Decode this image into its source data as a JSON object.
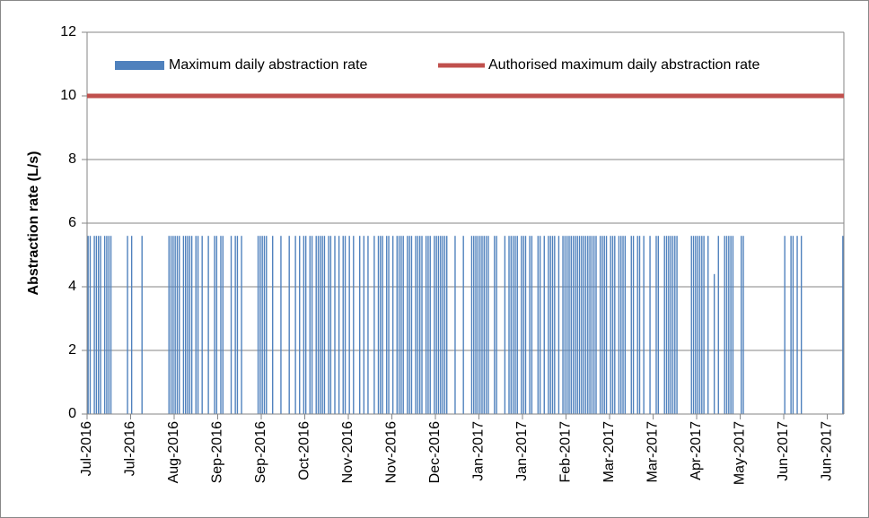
{
  "chart_data": {
    "type": "bar",
    "y_label": "Abstraction rate (L/s)",
    "ylim": [
      0,
      12
    ],
    "yticks": [
      0,
      2,
      4,
      6,
      8,
      10,
      12
    ],
    "grid": true,
    "categories": [
      "Jul-2016",
      null,
      null,
      null,
      null,
      null,
      null,
      null,
      null,
      null,
      null,
      null,
      null,
      null,
      null,
      null,
      null,
      null,
      null,
      null,
      null,
      "Jul-2016",
      null,
      null,
      null,
      null,
      null,
      null,
      null,
      null,
      null,
      null,
      null,
      null,
      null,
      null,
      null,
      null,
      null,
      null,
      null,
      null,
      "Aug-2016",
      null,
      null,
      null,
      null,
      null,
      null,
      null,
      null,
      null,
      null,
      null,
      null,
      null,
      null,
      null,
      null,
      null,
      null,
      null,
      null,
      "Sep-2016",
      null,
      null,
      null,
      null,
      null,
      null,
      null,
      null,
      null,
      null,
      null,
      null,
      null,
      null,
      null,
      null,
      null,
      null,
      null,
      null,
      "Sep-2016",
      null,
      null,
      null,
      null,
      null,
      null,
      null,
      null,
      null,
      null,
      null,
      null,
      null,
      null,
      null,
      null,
      null,
      null,
      null,
      null,
      "Oct-2016",
      null,
      null,
      null,
      null,
      null,
      null,
      null,
      null,
      null,
      null,
      null,
      null,
      null,
      null,
      null,
      null,
      null,
      null,
      null,
      null,
      "Nov-2016",
      null,
      null,
      null,
      null,
      null,
      null,
      null,
      null,
      null,
      null,
      null,
      null,
      null,
      null,
      null,
      null,
      null,
      null,
      null,
      null,
      "Nov-2016",
      null,
      null,
      null,
      null,
      null,
      null,
      null,
      null,
      null,
      null,
      null,
      null,
      null,
      null,
      null,
      null,
      null,
      null,
      null,
      null,
      "Dec-2016",
      null,
      null,
      null,
      null,
      null,
      null,
      null,
      null,
      null,
      null,
      null,
      null,
      null,
      null,
      null,
      null,
      null,
      null,
      null,
      null,
      "Jan-2017",
      null,
      null,
      null,
      null,
      null,
      null,
      null,
      null,
      null,
      null,
      null,
      null,
      null,
      null,
      null,
      null,
      null,
      null,
      null,
      null,
      "Jan-2017",
      null,
      null,
      null,
      null,
      null,
      null,
      null,
      null,
      null,
      null,
      null,
      null,
      null,
      null,
      null,
      null,
      null,
      null,
      null,
      null,
      "Feb-2017",
      null,
      null,
      null,
      null,
      null,
      null,
      null,
      null,
      null,
      null,
      null,
      null,
      null,
      null,
      null,
      null,
      null,
      null,
      null,
      null,
      "Mar-2017",
      null,
      null,
      null,
      null,
      null,
      null,
      null,
      null,
      null,
      null,
      null,
      null,
      null,
      null,
      null,
      null,
      null,
      null,
      null,
      null,
      "Mar-2017",
      null,
      null,
      null,
      null,
      null,
      null,
      null,
      null,
      null,
      null,
      null,
      null,
      null,
      null,
      null,
      null,
      null,
      null,
      null,
      null,
      "Apr-2017",
      null,
      null,
      null,
      null,
      null,
      null,
      null,
      null,
      null,
      null,
      null,
      null,
      null,
      null,
      null,
      null,
      null,
      null,
      null,
      null,
      "May-2017",
      null,
      null,
      null,
      null,
      null,
      null,
      null,
      null,
      null,
      null,
      null,
      null,
      null,
      null,
      null,
      null,
      null,
      null,
      null,
      null,
      "Jun-2017",
      null,
      null,
      null,
      null,
      null,
      null,
      null,
      null,
      null,
      null,
      null,
      null,
      null,
      null,
      null,
      null,
      null,
      null,
      null,
      null,
      "Jun-2017",
      null,
      null,
      null,
      null,
      null,
      null,
      null
    ],
    "series": [
      {
        "name": "Maximum daily abstraction rate",
        "color": "#4f81bd",
        "values": [
          5.6,
          5.6,
          0,
          5.6,
          5.6,
          5.6,
          5.6,
          0,
          5.6,
          5.6,
          5.6,
          5.6,
          0,
          0,
          0,
          0,
          0,
          0,
          0,
          5.6,
          0,
          5.6,
          0,
          0,
          0,
          0,
          5.6,
          0,
          0,
          0,
          0,
          0,
          0,
          0,
          0,
          0,
          0,
          0,
          0,
          5.6,
          5.6,
          5.6,
          5.6,
          5.6,
          5.6,
          0,
          5.6,
          5.6,
          5.6,
          5.6,
          5.6,
          0,
          5.6,
          5.6,
          0,
          5.6,
          0,
          0,
          5.6,
          0,
          0,
          5.6,
          5.6,
          0,
          5.6,
          5.6,
          0,
          0,
          0,
          5.6,
          0,
          5.6,
          5.6,
          0,
          5.6,
          0,
          0,
          0,
          0,
          0,
          0,
          0,
          5.6,
          5.6,
          5.6,
          5.6,
          5.6,
          0,
          0,
          5.6,
          0,
          0,
          0,
          5.6,
          0,
          0,
          0,
          5.6,
          0,
          0,
          5.6,
          0,
          5.6,
          0,
          5.6,
          5.6,
          0,
          5.6,
          5.6,
          0,
          5.6,
          5.6,
          5.6,
          5.6,
          5.6,
          0,
          5.6,
          5.6,
          0,
          5.6,
          0,
          5.6,
          0,
          5.6,
          5.6,
          0,
          5.6,
          0,
          5.6,
          0,
          0,
          5.6,
          0,
          5.6,
          0,
          5.6,
          0,
          0,
          5.6,
          0,
          5.6,
          5.6,
          5.6,
          0,
          5.6,
          5.6,
          0,
          5.6,
          0,
          5.6,
          5.6,
          5.6,
          5.6,
          0,
          5.6,
          5.6,
          5.6,
          0,
          5.6,
          5.6,
          5.6,
          5.6,
          0,
          5.6,
          5.6,
          5.6,
          0,
          5.6,
          5.6,
          5.6,
          5.6,
          5.6,
          5.6,
          5.6,
          0,
          0,
          0,
          5.6,
          0,
          0,
          0,
          5.6,
          0,
          0,
          0,
          5.6,
          5.6,
          5.6,
          5.6,
          5.6,
          5.6,
          5.6,
          5.6,
          5.6,
          0,
          0,
          5.6,
          5.6,
          0,
          0,
          0,
          5.6,
          0,
          5.6,
          5.6,
          5.6,
          5.6,
          5.6,
          0,
          5.6,
          5.6,
          5.6,
          0,
          5.6,
          5.6,
          0,
          0,
          5.6,
          5.6,
          0,
          5.6,
          0,
          5.6,
          5.6,
          5.6,
          5.6,
          0,
          5.6,
          0,
          5.6,
          5.6,
          5.6,
          5.6,
          5.6,
          5.6,
          5.6,
          5.6,
          5.6,
          5.6,
          5.6,
          5.6,
          5.6,
          5.6,
          5.6,
          5.6,
          5.6,
          0,
          5.6,
          5.6,
          5.6,
          5.6,
          0,
          5.6,
          5.6,
          5.6,
          0,
          5.6,
          5.6,
          5.6,
          5.6,
          0,
          0,
          5.6,
          5.6,
          0,
          5.6,
          5.6,
          0,
          5.6,
          0,
          0,
          5.6,
          0,
          0,
          5.6,
          5.6,
          0,
          0,
          5.6,
          5.6,
          5.6,
          5.6,
          5.6,
          5.6,
          5.6,
          0,
          0,
          0,
          0,
          0,
          0,
          5.6,
          5.6,
          5.6,
          5.6,
          5.6,
          5.6,
          5.6,
          0,
          5.6,
          0,
          0,
          4.4,
          0,
          5.6,
          0,
          0,
          5.6,
          5.6,
          5.6,
          5.6,
          5.6,
          0,
          0,
          0,
          5.6,
          5.6,
          0,
          0,
          0,
          0,
          0,
          0,
          0,
          0,
          0,
          0,
          0,
          0,
          0,
          0,
          0,
          0,
          0,
          0,
          0,
          5.6,
          0,
          0,
          5.6,
          5.6,
          0,
          5.6,
          0,
          5.6,
          0,
          0,
          0,
          0,
          0,
          0,
          0,
          0,
          0,
          0,
          0,
          0,
          0,
          0,
          0,
          0,
          0,
          0,
          0,
          5.6
        ]
      }
    ],
    "threshold": {
      "name": "Authorised maximum daily abstraction rate",
      "value": 10,
      "color": "#c0504d"
    }
  }
}
